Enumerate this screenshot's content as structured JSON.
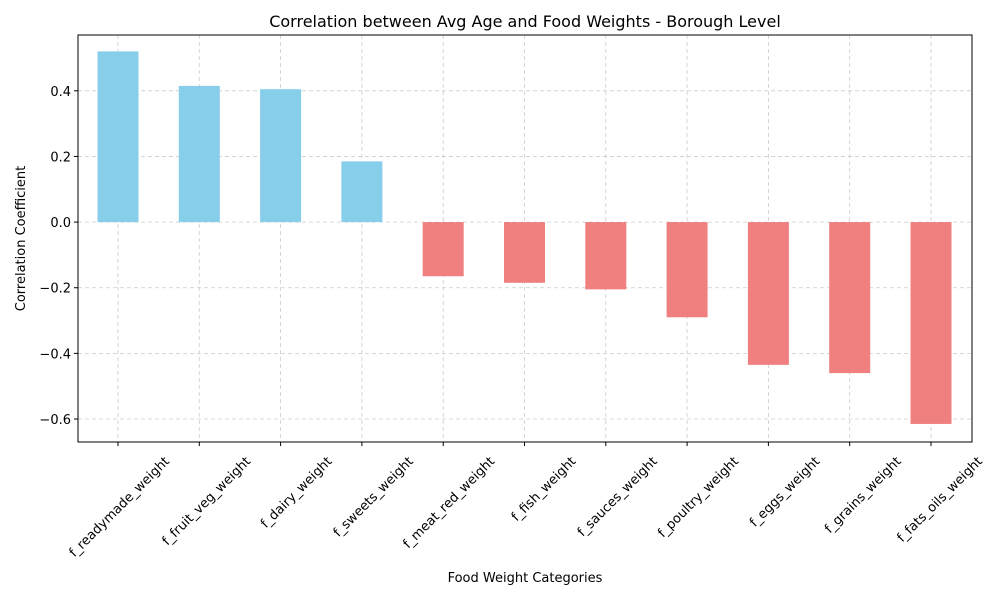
{
  "chart_data": {
    "type": "bar",
    "title": "Correlation between Avg Age and Food Weights - Borough Level",
    "xlabel": "Food Weight Categories",
    "ylabel": "Correlation Coefficient",
    "categories": [
      "f_readymade_weight",
      "f_fruit_veg_weight",
      "f_dairy_weight",
      "f_sweets_weight",
      "f_meat_red_weight",
      "f_fish_weight",
      "f_sauces_weight",
      "f_poultry_weight",
      "f_eggs_weight",
      "f_grains_weight",
      "f_fats_oils_weight"
    ],
    "values": [
      0.52,
      0.415,
      0.405,
      0.185,
      -0.165,
      -0.185,
      -0.205,
      -0.29,
      -0.435,
      -0.46,
      -0.615
    ],
    "ylim": [
      -0.67,
      0.57
    ],
    "yticks": [
      -0.6,
      -0.4,
      -0.2,
      0.0,
      0.2,
      0.4
    ],
    "ytick_labels": [
      "−0.6",
      "−0.4",
      "−0.2",
      "0.0",
      "0.2",
      "0.4"
    ],
    "grid": true,
    "colors": {
      "positive": "#87ceeb",
      "negative": "#f08080",
      "grid": "#cccccc",
      "axis": "#000000"
    }
  }
}
